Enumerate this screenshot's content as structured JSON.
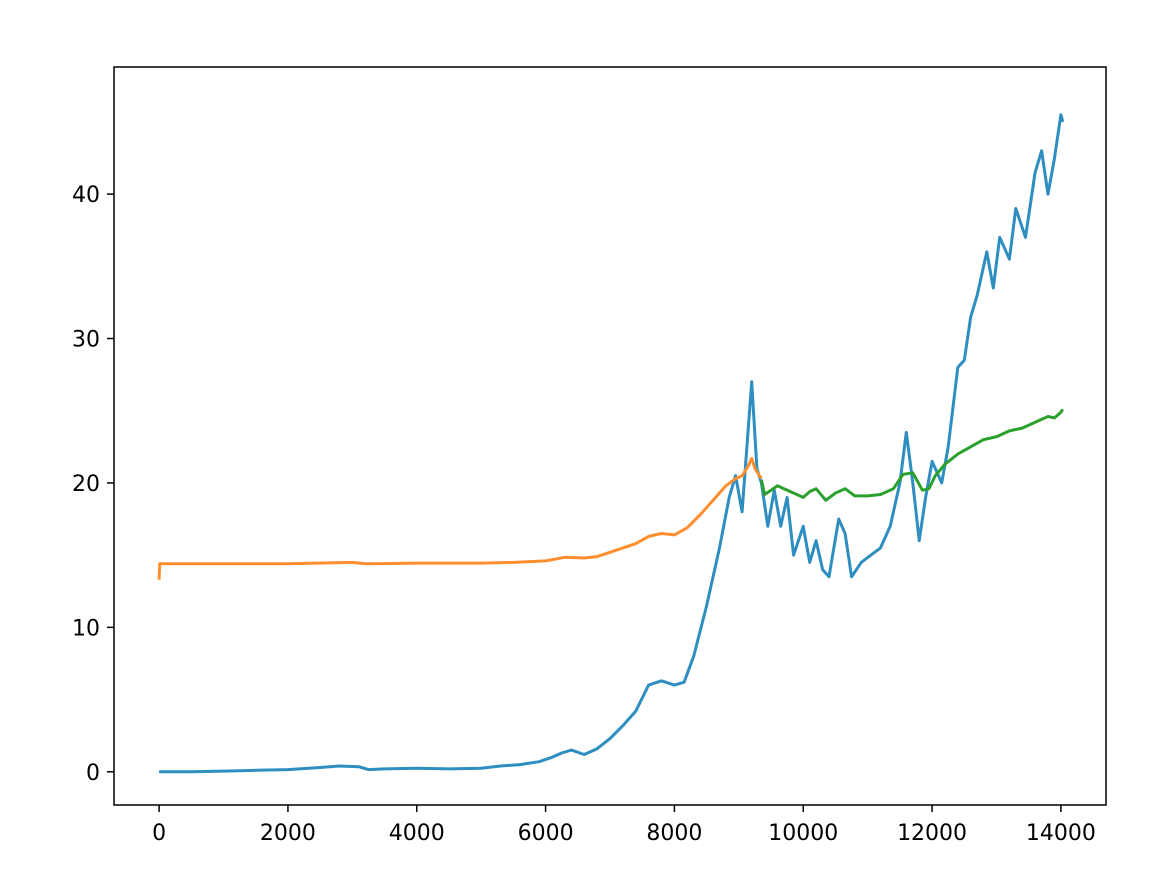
{
  "chart_data": {
    "type": "line",
    "title": "",
    "xlabel": "",
    "ylabel": "",
    "xlim": [
      -700,
      14700
    ],
    "ylim": [
      -2.3,
      48.8
    ],
    "x_ticks": [
      0,
      2000,
      4000,
      6000,
      8000,
      10000,
      12000,
      14000
    ],
    "x_tick_labels": [
      "0",
      "2000",
      "4000",
      "6000",
      "8000",
      "10000",
      "12000",
      "14000"
    ],
    "y_ticks": [
      0,
      10,
      20,
      30,
      40
    ],
    "y_tick_labels": [
      "0",
      "10",
      "20",
      "30",
      "40"
    ],
    "grid": false,
    "legend": "none",
    "series": [
      {
        "color": "#2e8ec0",
        "points": [
          [
            0,
            0.0
          ],
          [
            500,
            0.0
          ],
          [
            1000,
            0.05
          ],
          [
            1500,
            0.1
          ],
          [
            2000,
            0.15
          ],
          [
            2500,
            0.3
          ],
          [
            2800,
            0.4
          ],
          [
            3100,
            0.35
          ],
          [
            3250,
            0.15
          ],
          [
            3500,
            0.2
          ],
          [
            4000,
            0.25
          ],
          [
            4500,
            0.2
          ],
          [
            5000,
            0.25
          ],
          [
            5300,
            0.4
          ],
          [
            5600,
            0.5
          ],
          [
            5900,
            0.7
          ],
          [
            6100,
            1.0
          ],
          [
            6250,
            1.3
          ],
          [
            6400,
            1.5
          ],
          [
            6600,
            1.2
          ],
          [
            6800,
            1.6
          ],
          [
            7000,
            2.3
          ],
          [
            7200,
            3.2
          ],
          [
            7400,
            4.2
          ],
          [
            7600,
            6.0
          ],
          [
            7800,
            6.3
          ],
          [
            8000,
            6.0
          ],
          [
            8150,
            6.2
          ],
          [
            8300,
            8.0
          ],
          [
            8500,
            11.5
          ],
          [
            8700,
            15.5
          ],
          [
            8850,
            19.0
          ],
          [
            8950,
            20.5
          ],
          [
            9050,
            18.0
          ],
          [
            9150,
            24.0
          ],
          [
            9200,
            27.0
          ],
          [
            9280,
            21.0
          ],
          [
            9350,
            20.0
          ],
          [
            9450,
            17.0
          ],
          [
            9550,
            19.5
          ],
          [
            9650,
            17.0
          ],
          [
            9750,
            19.0
          ],
          [
            9850,
            15.0
          ],
          [
            10000,
            17.0
          ],
          [
            10100,
            14.5
          ],
          [
            10200,
            16.0
          ],
          [
            10300,
            14.0
          ],
          [
            10400,
            13.5
          ],
          [
            10550,
            17.5
          ],
          [
            10650,
            16.5
          ],
          [
            10750,
            13.5
          ],
          [
            10900,
            14.5
          ],
          [
            11050,
            15.0
          ],
          [
            11200,
            15.5
          ],
          [
            11350,
            17.0
          ],
          [
            11500,
            20.0
          ],
          [
            11600,
            23.5
          ],
          [
            11700,
            20.0
          ],
          [
            11800,
            16.0
          ],
          [
            11900,
            19.0
          ],
          [
            12000,
            21.5
          ],
          [
            12150,
            20.0
          ],
          [
            12250,
            22.5
          ],
          [
            12400,
            28.0
          ],
          [
            12500,
            28.5
          ],
          [
            12600,
            31.5
          ],
          [
            12700,
            33.0
          ],
          [
            12850,
            36.0
          ],
          [
            12950,
            33.5
          ],
          [
            13050,
            37.0
          ],
          [
            13200,
            35.5
          ],
          [
            13300,
            39.0
          ],
          [
            13450,
            37.0
          ],
          [
            13600,
            41.5
          ],
          [
            13700,
            43.0
          ],
          [
            13800,
            40.0
          ],
          [
            13900,
            42.5
          ],
          [
            14000,
            45.5
          ],
          [
            14030,
            45.0
          ]
        ]
      },
      {
        "color": "#ff8f2e",
        "points": [
          [
            0,
            13.3
          ],
          [
            10,
            14.4
          ],
          [
            500,
            14.4
          ],
          [
            1000,
            14.4
          ],
          [
            2000,
            14.4
          ],
          [
            3000,
            14.5
          ],
          [
            3200,
            14.4
          ],
          [
            4000,
            14.45
          ],
          [
            5000,
            14.45
          ],
          [
            5500,
            14.5
          ],
          [
            6000,
            14.6
          ],
          [
            6300,
            14.85
          ],
          [
            6600,
            14.8
          ],
          [
            6800,
            14.9
          ],
          [
            7000,
            15.2
          ],
          [
            7200,
            15.5
          ],
          [
            7400,
            15.8
          ],
          [
            7600,
            16.3
          ],
          [
            7800,
            16.5
          ],
          [
            8000,
            16.4
          ],
          [
            8200,
            16.9
          ],
          [
            8400,
            17.8
          ],
          [
            8600,
            18.8
          ],
          [
            8800,
            19.8
          ],
          [
            8950,
            20.3
          ],
          [
            9050,
            20.5
          ],
          [
            9150,
            21.2
          ],
          [
            9200,
            21.7
          ],
          [
            9250,
            21.0
          ],
          [
            9350,
            20.3
          ]
        ]
      },
      {
        "color": "#2ca02c",
        "points": [
          [
            9350,
            20.2
          ],
          [
            9400,
            19.2
          ],
          [
            9500,
            19.5
          ],
          [
            9600,
            19.8
          ],
          [
            9700,
            19.6
          ],
          [
            9800,
            19.4
          ],
          [
            9900,
            19.2
          ],
          [
            10000,
            19.0
          ],
          [
            10100,
            19.4
          ],
          [
            10200,
            19.6
          ],
          [
            10350,
            18.8
          ],
          [
            10500,
            19.3
          ],
          [
            10650,
            19.6
          ],
          [
            10800,
            19.1
          ],
          [
            11000,
            19.1
          ],
          [
            11200,
            19.2
          ],
          [
            11400,
            19.6
          ],
          [
            11550,
            20.6
          ],
          [
            11700,
            20.7
          ],
          [
            11850,
            19.5
          ],
          [
            11950,
            19.6
          ],
          [
            12050,
            20.5
          ],
          [
            12200,
            21.3
          ],
          [
            12400,
            22.0
          ],
          [
            12600,
            22.5
          ],
          [
            12800,
            23.0
          ],
          [
            13000,
            23.2
          ],
          [
            13200,
            23.6
          ],
          [
            13400,
            23.8
          ],
          [
            13600,
            24.2
          ],
          [
            13800,
            24.6
          ],
          [
            13900,
            24.5
          ],
          [
            14000,
            24.9
          ],
          [
            14030,
            25.1
          ]
        ]
      }
    ]
  }
}
